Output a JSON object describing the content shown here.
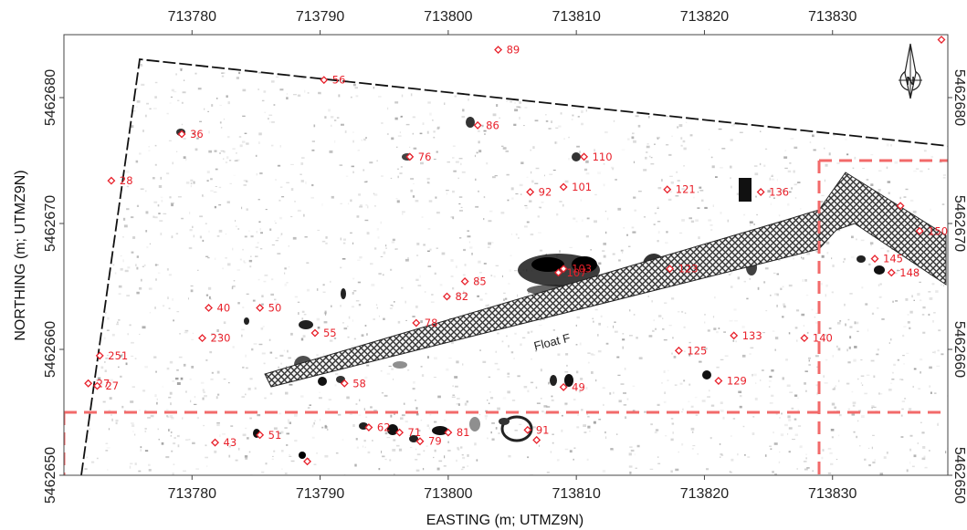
{
  "map": {
    "x_axis_title": "EASTING (m; UTMZ9N)",
    "y_axis_title": "NORTHING (m; UTMZ9N)",
    "x_range": [
      713770,
      713839
    ],
    "y_range": [
      5462650,
      5462685
    ],
    "x_ticks": [
      713780,
      713790,
      713800,
      713810,
      713820,
      713830
    ],
    "y_ticks": [
      5462650,
      5462660,
      5462670,
      5462680
    ],
    "x_tick_labels": [
      "713780",
      "713790",
      "713800",
      "713810",
      "713820",
      "713830"
    ],
    "y_tick_labels": [
      "5462650",
      "5462660",
      "5462670",
      "5462680"
    ],
    "right_tick_labels": [
      "5462650",
      "5462660",
      "5462670",
      "5462680"
    ],
    "feature_label": "Float F",
    "north_arrow_letter": "N",
    "colors": {
      "anomaly": "#e8202a",
      "grid_boundary": "#f26a6a",
      "survey_boundary": "#111111",
      "float_fill": "#444444",
      "frame": "#444444"
    },
    "anomalies": [
      {
        "id": "89",
        "x": 713803.9,
        "y": 5462683.8
      },
      {
        "id": "152",
        "x": 713838.5,
        "y": 5462684.6
      },
      {
        "id": "56",
        "x": 713790.3,
        "y": 5462681.4
      },
      {
        "id": "86",
        "x": 713802.3,
        "y": 5462677.8
      },
      {
        "id": "36",
        "x": 713779.2,
        "y": 5462677.1
      },
      {
        "id": "76",
        "x": 713797.0,
        "y": 5462675.3
      },
      {
        "id": "110",
        "x": 713810.6,
        "y": 5462675.3
      },
      {
        "id": "28",
        "x": 713773.7,
        "y": 5462673.4
      },
      {
        "id": "101",
        "x": 713809.0,
        "y": 5462672.9
      },
      {
        "id": "92",
        "x": 713806.4,
        "y": 5462672.5
      },
      {
        "id": "121",
        "x": 713817.1,
        "y": 5462672.7
      },
      {
        "id": "136",
        "x": 713824.4,
        "y": 5462672.5
      },
      {
        "id": "150",
        "x": 713836.8,
        "y": 5462669.4
      },
      {
        "id": "103",
        "x": 713809.0,
        "y": 5462666.4
      },
      {
        "id": "107",
        "x": 713808.6,
        "y": 5462666.1
      },
      {
        "id": "123",
        "x": 713817.3,
        "y": 5462666.4
      },
      {
        "id": "145",
        "x": 713833.3,
        "y": 5462667.2
      },
      {
        "id": "148",
        "x": 713834.6,
        "y": 5462666.1
      },
      {
        "id": "85",
        "x": 713801.3,
        "y": 5462665.4
      },
      {
        "id": "82",
        "x": 713799.9,
        "y": 5462664.2
      },
      {
        "id": "40",
        "x": 713781.3,
        "y": 5462663.3
      },
      {
        "id": "50",
        "x": 713785.3,
        "y": 5462663.3
      },
      {
        "id": "78",
        "x": 713797.5,
        "y": 5462662.1
      },
      {
        "id": "230",
        "x": 713780.8,
        "y": 5462660.9
      },
      {
        "id": "55",
        "x": 713789.6,
        "y": 5462661.3
      },
      {
        "id": "133",
        "x": 713822.3,
        "y": 5462661.1
      },
      {
        "id": "140",
        "x": 713827.8,
        "y": 5462660.9
      },
      {
        "id": "125",
        "x": 713818.0,
        "y": 5462659.9
      },
      {
        "id": "251",
        "x": 713772.8,
        "y": 5462659.5
      },
      {
        "id": "129",
        "x": 713821.1,
        "y": 5462657.5
      },
      {
        "id": "27",
        "x": 713771.9,
        "y": 5462657.3
      },
      {
        "id": "27b",
        "x": 713772.6,
        "y": 5462657.1,
        "label": "27"
      },
      {
        "id": "58",
        "x": 713791.9,
        "y": 5462657.3
      },
      {
        "id": "49",
        "x": 713809.0,
        "y": 5462657.0
      },
      {
        "id": "62",
        "x": 713793.8,
        "y": 5462653.8
      },
      {
        "id": "71",
        "x": 713796.2,
        "y": 5462653.4
      },
      {
        "id": "81",
        "x": 713800.0,
        "y": 5462653.4
      },
      {
        "id": "91",
        "x": 713806.2,
        "y": 5462653.6
      },
      {
        "id": "93",
        "x": 713806.9,
        "y": 5462652.8,
        "label": ""
      },
      {
        "id": "51",
        "x": 713785.3,
        "y": 5462653.2
      },
      {
        "id": "79",
        "x": 713797.8,
        "y": 5462652.7
      },
      {
        "id": "43",
        "x": 713781.8,
        "y": 5462652.6
      },
      {
        "id": "x1",
        "x": 713789.0,
        "y": 5462651.1,
        "label": ""
      },
      {
        "id": "x2",
        "x": 713835.3,
        "y": 5462671.4,
        "label": ""
      }
    ]
  }
}
